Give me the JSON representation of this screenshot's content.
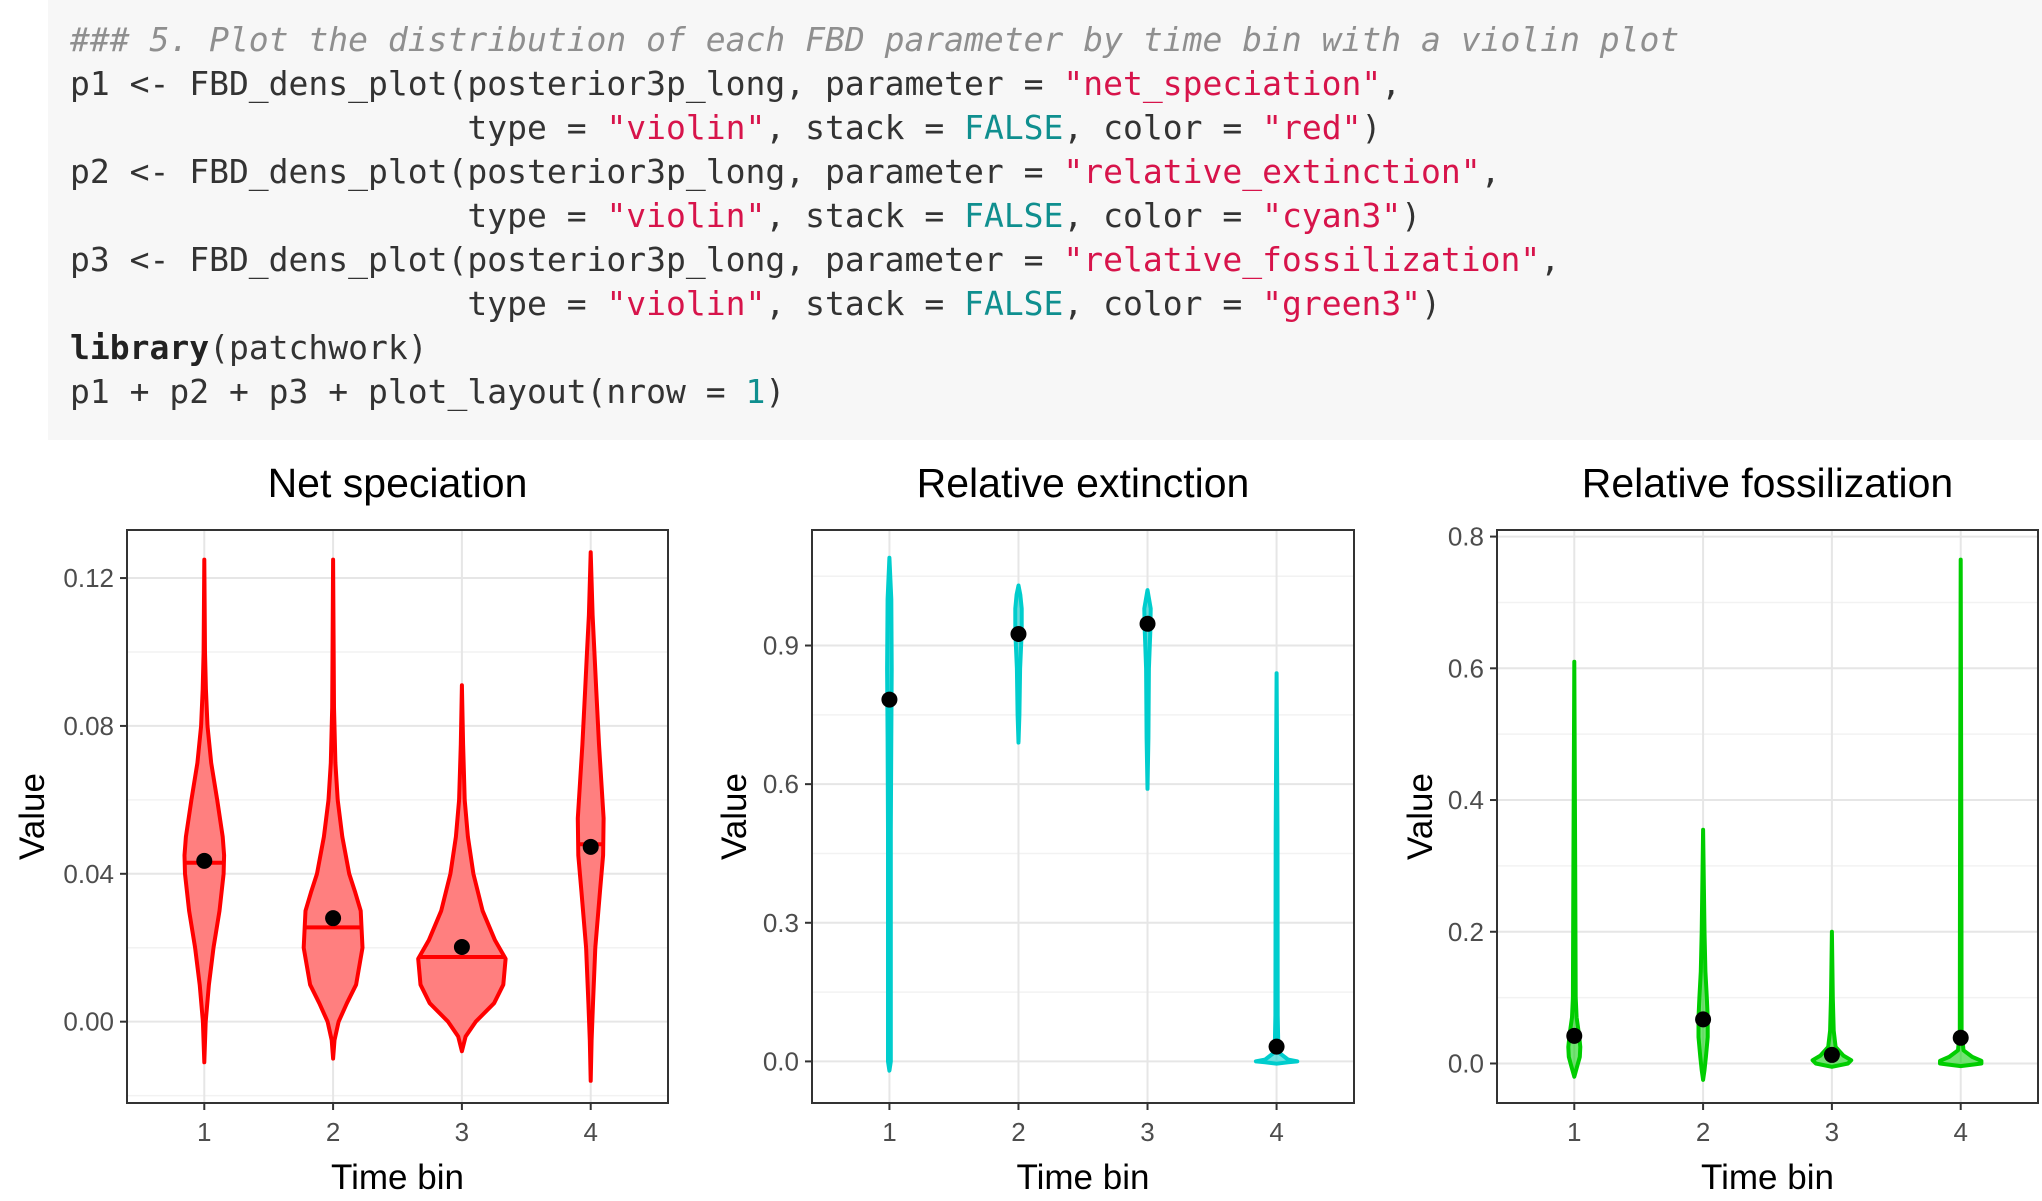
{
  "code": {
    "lines": [
      [
        {
          "t": "### 5. Plot the distribution of each FBD parameter by time bin with a violin plot",
          "c": "comment"
        }
      ],
      [
        {
          "t": "p1 <- FBD_dens_plot(posterior3p_long, parameter = ",
          "c": "plain"
        },
        {
          "t": "\"net_speciation\"",
          "c": "str"
        },
        {
          "t": ",",
          "c": "plain"
        }
      ],
      [
        {
          "t": "                    type = ",
          "c": "plain"
        },
        {
          "t": "\"violin\"",
          "c": "str"
        },
        {
          "t": ", stack = ",
          "c": "plain"
        },
        {
          "t": "FALSE",
          "c": "const"
        },
        {
          "t": ", color = ",
          "c": "plain"
        },
        {
          "t": "\"red\"",
          "c": "str"
        },
        {
          "t": ")",
          "c": "plain"
        }
      ],
      [
        {
          "t": "p2 <- FBD_dens_plot(posterior3p_long, parameter = ",
          "c": "plain"
        },
        {
          "t": "\"relative_extinction\"",
          "c": "str"
        },
        {
          "t": ",",
          "c": "plain"
        }
      ],
      [
        {
          "t": "                    type = ",
          "c": "plain"
        },
        {
          "t": "\"violin\"",
          "c": "str"
        },
        {
          "t": ", stack = ",
          "c": "plain"
        },
        {
          "t": "FALSE",
          "c": "const"
        },
        {
          "t": ", color = ",
          "c": "plain"
        },
        {
          "t": "\"cyan3\"",
          "c": "str"
        },
        {
          "t": ")",
          "c": "plain"
        }
      ],
      [
        {
          "t": "p3 <- FBD_dens_plot(posterior3p_long, parameter = ",
          "c": "plain"
        },
        {
          "t": "\"relative_fossilization\"",
          "c": "str"
        },
        {
          "t": ",",
          "c": "plain"
        }
      ],
      [
        {
          "t": "                    type = ",
          "c": "plain"
        },
        {
          "t": "\"violin\"",
          "c": "str"
        },
        {
          "t": ", stack = ",
          "c": "plain"
        },
        {
          "t": "FALSE",
          "c": "const"
        },
        {
          "t": ", color = ",
          "c": "plain"
        },
        {
          "t": "\"green3\"",
          "c": "str"
        },
        {
          "t": ")",
          "c": "plain"
        }
      ],
      [
        {
          "t": "library",
          "c": "kw"
        },
        {
          "t": "(patchwork)",
          "c": "plain"
        }
      ],
      [
        {
          "t": "p1 + p2 + p3 + plot_layout(nrow = ",
          "c": "plain"
        },
        {
          "t": "1",
          "c": "num"
        },
        {
          "t": ")",
          "c": "plain"
        }
      ]
    ]
  },
  "chart_data": [
    {
      "type": "violin",
      "title": "Net speciation",
      "xlabel": "Time bin",
      "ylabel": "Value",
      "categories": [
        "1",
        "2",
        "3",
        "4"
      ],
      "ylim": [
        -0.022,
        0.133
      ],
      "yticks": [
        0.0,
        0.04,
        0.08,
        0.12
      ],
      "ytick_labels": [
        "0.00",
        "0.04",
        "0.08",
        "0.12"
      ],
      "color": "#ff0000",
      "fill": "#ff7f7f",
      "show_median_line": true,
      "grid": true,
      "violins": [
        {
          "min": -0.011,
          "max": 0.125,
          "median": 0.043,
          "mean": 0.0435,
          "profile": [
            [
              -0.011,
              0.0
            ],
            [
              0.0,
              0.03
            ],
            [
              0.01,
              0.1
            ],
            [
              0.02,
              0.2
            ],
            [
              0.03,
              0.33
            ],
            [
              0.04,
              0.42
            ],
            [
              0.045,
              0.43
            ],
            [
              0.05,
              0.4
            ],
            [
              0.06,
              0.28
            ],
            [
              0.07,
              0.15
            ],
            [
              0.08,
              0.07
            ],
            [
              0.09,
              0.035
            ],
            [
              0.1,
              0.015
            ],
            [
              0.125,
              0.0
            ]
          ]
        },
        {
          "min": -0.01,
          "max": 0.125,
          "median": 0.0255,
          "mean": 0.028,
          "profile": [
            [
              -0.01,
              0.0
            ],
            [
              -0.005,
              0.03
            ],
            [
              0.0,
              0.12
            ],
            [
              0.005,
              0.3
            ],
            [
              0.01,
              0.5
            ],
            [
              0.02,
              0.64
            ],
            [
              0.03,
              0.6
            ],
            [
              0.035,
              0.48
            ],
            [
              0.04,
              0.35
            ],
            [
              0.05,
              0.2
            ],
            [
              0.06,
              0.1
            ],
            [
              0.07,
              0.05
            ],
            [
              0.085,
              0.02
            ],
            [
              0.125,
              0.0
            ]
          ]
        },
        {
          "min": -0.008,
          "max": 0.091,
          "median": 0.0175,
          "mean": 0.0202,
          "profile": [
            [
              -0.008,
              0.0
            ],
            [
              -0.004,
              0.08
            ],
            [
              0.0,
              0.3
            ],
            [
              0.005,
              0.7
            ],
            [
              0.01,
              0.9
            ],
            [
              0.017,
              0.95
            ],
            [
              0.022,
              0.72
            ],
            [
              0.03,
              0.45
            ],
            [
              0.04,
              0.25
            ],
            [
              0.05,
              0.13
            ],
            [
              0.06,
              0.06
            ],
            [
              0.075,
              0.025
            ],
            [
              0.091,
              0.0
            ]
          ]
        },
        {
          "min": -0.016,
          "max": 0.127,
          "median": 0.048,
          "mean": 0.0473,
          "profile": [
            [
              -0.016,
              0.0
            ],
            [
              -0.005,
              0.02
            ],
            [
              0.005,
              0.05
            ],
            [
              0.02,
              0.1
            ],
            [
              0.035,
              0.2
            ],
            [
              0.045,
              0.27
            ],
            [
              0.055,
              0.28
            ],
            [
              0.065,
              0.23
            ],
            [
              0.075,
              0.18
            ],
            [
              0.09,
              0.12
            ],
            [
              0.1,
              0.08
            ],
            [
              0.11,
              0.04
            ],
            [
              0.127,
              0.0
            ]
          ]
        }
      ]
    },
    {
      "type": "violin",
      "title": "Relative extinction",
      "xlabel": "Time bin",
      "ylabel": "Value",
      "categories": [
        "1",
        "2",
        "3",
        "4"
      ],
      "ylim": [
        -0.09,
        1.15
      ],
      "yticks": [
        0.0,
        0.3,
        0.6,
        0.9
      ],
      "ytick_labels": [
        "0.0",
        "0.3",
        "0.6",
        "0.9"
      ],
      "color": "#00cdcd",
      "fill": "#00cdcd",
      "show_median_line": false,
      "grid": true,
      "violins": [
        {
          "min": -0.02,
          "max": 1.09,
          "median": 0.78,
          "mean": 0.783,
          "profile": [
            [
              -0.02,
              0.0
            ],
            [
              0.0,
              0.03
            ],
            [
              0.5,
              0.03
            ],
            [
              0.7,
              0.04
            ],
            [
              0.85,
              0.05
            ],
            [
              1.0,
              0.04
            ],
            [
              1.09,
              0.0
            ]
          ]
        },
        {
          "min": 0.69,
          "max": 1.03,
          "median": 0.93,
          "mean": 0.925,
          "profile": [
            [
              0.69,
              0.0
            ],
            [
              0.75,
              0.02
            ],
            [
              0.85,
              0.035
            ],
            [
              0.93,
              0.07
            ],
            [
              0.98,
              0.07
            ],
            [
              1.01,
              0.04
            ],
            [
              1.03,
              0.0
            ]
          ]
        },
        {
          "min": 0.59,
          "max": 1.02,
          "median": 0.95,
          "mean": 0.947,
          "profile": [
            [
              0.59,
              0.0
            ],
            [
              0.7,
              0.02
            ],
            [
              0.85,
              0.03
            ],
            [
              0.93,
              0.06
            ],
            [
              0.98,
              0.07
            ],
            [
              1.02,
              0.0
            ]
          ]
        },
        {
          "min": -0.005,
          "max": 0.84,
          "median": 0.002,
          "mean": 0.032,
          "profile": [
            [
              -0.005,
              0.0
            ],
            [
              -0.002,
              0.25
            ],
            [
              0.0,
              0.45
            ],
            [
              0.004,
              0.25
            ],
            [
              0.02,
              0.04
            ],
            [
              0.1,
              0.025
            ],
            [
              0.5,
              0.02
            ],
            [
              0.84,
              0.0
            ]
          ]
        }
      ]
    },
    {
      "type": "violin",
      "title": "Relative fossilization",
      "xlabel": "Time bin",
      "ylabel": "Value",
      "categories": [
        "1",
        "2",
        "3",
        "4"
      ],
      "ylim": [
        -0.06,
        0.81
      ],
      "yticks": [
        0.0,
        0.2,
        0.4,
        0.6,
        0.8
      ],
      "ytick_labels": [
        "0.0",
        "0.2",
        "0.4",
        "0.6",
        "0.8"
      ],
      "color": "#00cd00",
      "fill": "#00cd00",
      "show_median_line": false,
      "grid": true,
      "violins": [
        {
          "min": -0.02,
          "max": 0.61,
          "median": 0.03,
          "mean": 0.042,
          "profile": [
            [
              -0.02,
              0.0
            ],
            [
              -0.005,
              0.06
            ],
            [
              0.01,
              0.12
            ],
            [
              0.025,
              0.13
            ],
            [
              0.045,
              0.1
            ],
            [
              0.07,
              0.05
            ],
            [
              0.1,
              0.03
            ],
            [
              0.3,
              0.02
            ],
            [
              0.61,
              0.0
            ]
          ]
        },
        {
          "min": -0.025,
          "max": 0.355,
          "median": 0.06,
          "mean": 0.067,
          "profile": [
            [
              -0.025,
              0.0
            ],
            [
              -0.01,
              0.03
            ],
            [
              0.01,
              0.06
            ],
            [
              0.04,
              0.1
            ],
            [
              0.07,
              0.1
            ],
            [
              0.1,
              0.08
            ],
            [
              0.14,
              0.05
            ],
            [
              0.2,
              0.03
            ],
            [
              0.355,
              0.0
            ]
          ]
        },
        {
          "min": -0.005,
          "max": 0.2,
          "median": 0.005,
          "mean": 0.013,
          "profile": [
            [
              -0.005,
              0.0
            ],
            [
              0.0,
              0.35
            ],
            [
              0.005,
              0.42
            ],
            [
              0.012,
              0.25
            ],
            [
              0.025,
              0.08
            ],
            [
              0.05,
              0.04
            ],
            [
              0.1,
              0.02
            ],
            [
              0.2,
              0.0
            ]
          ]
        },
        {
          "min": -0.004,
          "max": 0.765,
          "median": 0.002,
          "mean": 0.039,
          "profile": [
            [
              -0.004,
              0.0
            ],
            [
              0.0,
              0.45
            ],
            [
              0.004,
              0.45
            ],
            [
              0.01,
              0.25
            ],
            [
              0.02,
              0.06
            ],
            [
              0.05,
              0.02
            ],
            [
              0.3,
              0.015
            ],
            [
              0.765,
              0.0
            ]
          ]
        }
      ]
    }
  ]
}
